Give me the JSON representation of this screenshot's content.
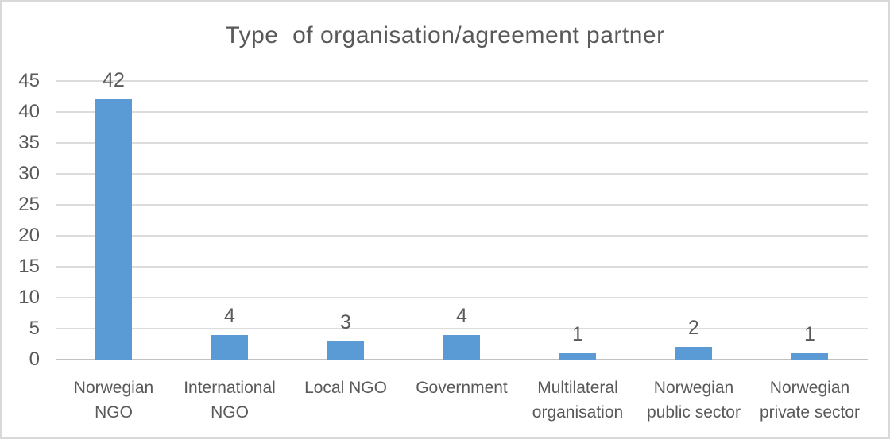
{
  "window": {
    "background_color": "#ffffff",
    "border_color": "#d9d9d9"
  },
  "chart_data": {
    "type": "bar",
    "title": "Type  of organisation/agreement partner",
    "categories": [
      "Norwegian NGO",
      "International NGO",
      "Local NGO",
      "Government",
      "Multilateral organisation",
      "Norwegian public sector",
      "Norwegian private sector"
    ],
    "category_label_lines": [
      [
        "Norwegian",
        "NGO"
      ],
      [
        "International",
        "NGO"
      ],
      [
        "Local NGO"
      ],
      [
        "Government"
      ],
      [
        "Multilateral",
        "organisation"
      ],
      [
        "Norwegian",
        "public sector"
      ],
      [
        "Norwegian",
        "private sector"
      ]
    ],
    "values": [
      42,
      4,
      3,
      4,
      1,
      2,
      1
    ],
    "data_labels": [
      "42",
      "4",
      "3",
      "4",
      "1",
      "2",
      "1"
    ],
    "xlabel": "",
    "ylabel": "",
    "ylim": [
      0,
      45
    ],
    "yticks": [
      0,
      5,
      10,
      15,
      20,
      25,
      30,
      35,
      40,
      45
    ],
    "grid": true,
    "legend": false,
    "bar_color": "#5b9bd5",
    "gridline_color": "#dcdcdc",
    "axis_line_color": "#c2c2c2",
    "text_color": "#595959",
    "title_color": "#595959"
  }
}
